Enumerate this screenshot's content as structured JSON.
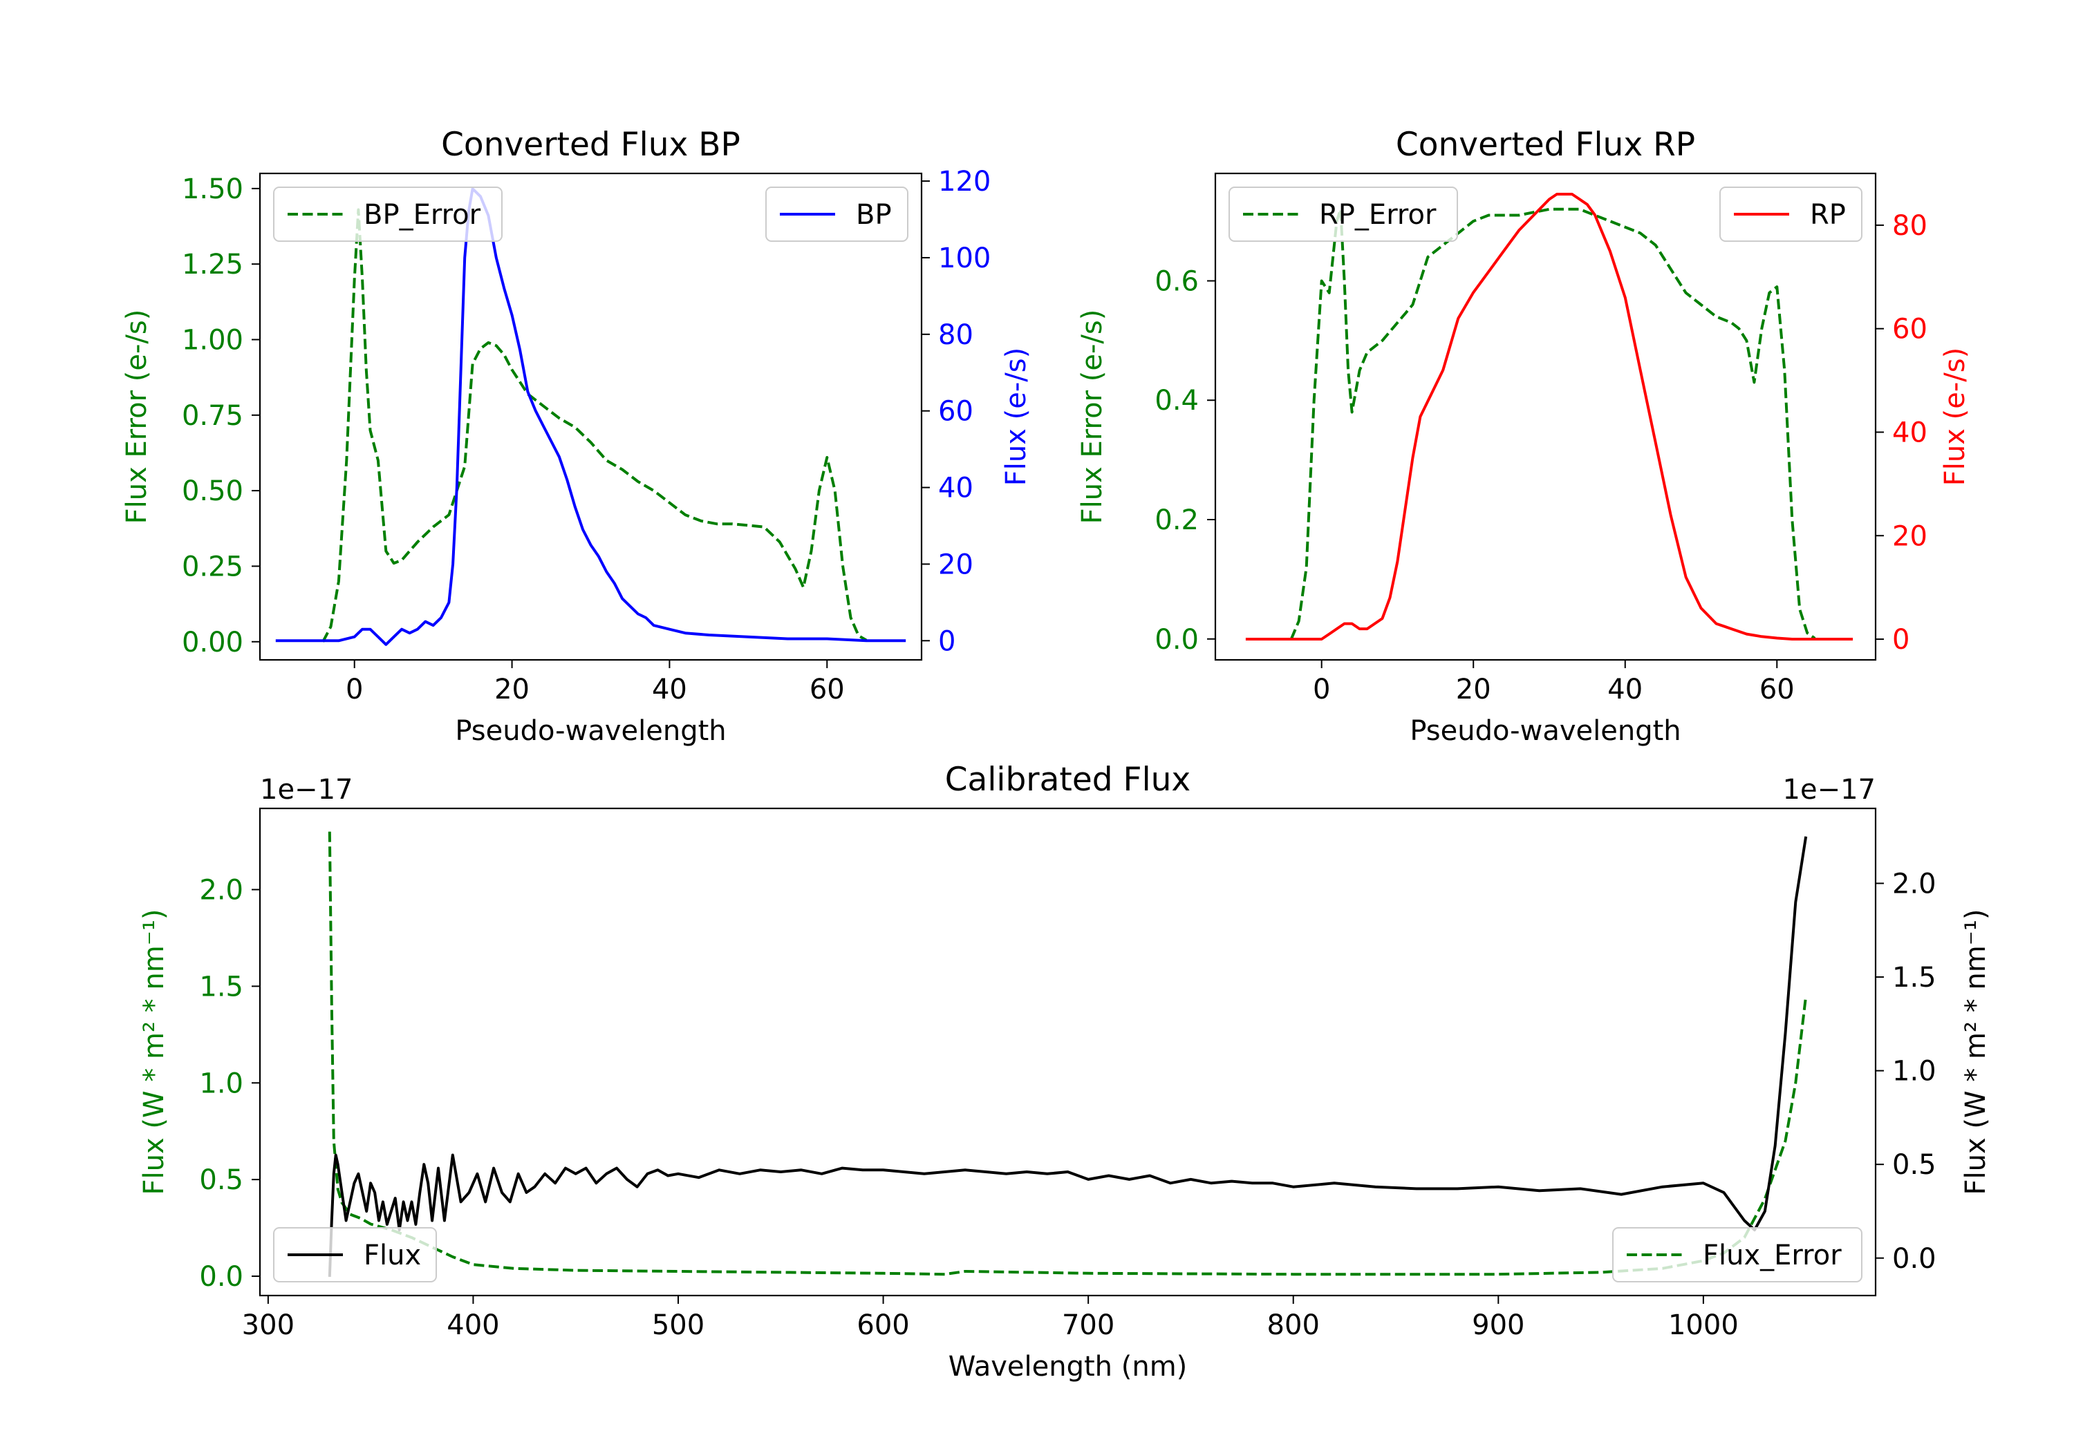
{
  "colors": {
    "error": "#007f00",
    "bp": "#0000ff",
    "rp": "#ff0000",
    "flux": "#000000",
    "axis": "#000000"
  },
  "chart_data": [
    {
      "id": "bp",
      "type": "line",
      "title": "Converted Flux BP",
      "xlabel": "Pseudo-wavelength",
      "ylabel_left": "Flux Error (e-/s)",
      "ylabel_right": "Flux (e-/s)",
      "xlim": [
        -12,
        72
      ],
      "ylim_left": [
        -0.06,
        1.55
      ],
      "ylim_right": [
        -5,
        122
      ],
      "xticks": [
        {
          "v": 0,
          "label": "0"
        },
        {
          "v": 20,
          "label": "20"
        },
        {
          "v": 40,
          "label": "40"
        },
        {
          "v": 60,
          "label": "60"
        }
      ],
      "yticks_left": [
        {
          "v": 0,
          "label": "0.00"
        },
        {
          "v": 0.25,
          "label": "0.25"
        },
        {
          "v": 0.5,
          "label": "0.50"
        },
        {
          "v": 0.75,
          "label": "0.75"
        },
        {
          "v": 1.0,
          "label": "1.00"
        },
        {
          "v": 1.25,
          "label": "1.25"
        },
        {
          "v": 1.5,
          "label": "1.50"
        }
      ],
      "yticks_right": [
        {
          "v": 0,
          "label": "0"
        },
        {
          "v": 20,
          "label": "20"
        },
        {
          "v": 40,
          "label": "40"
        },
        {
          "v": 60,
          "label": "60"
        },
        {
          "v": 80,
          "label": "80"
        },
        {
          "v": 100,
          "label": "100"
        },
        {
          "v": 120,
          "label": "120"
        }
      ],
      "series": [
        {
          "name": "BP_Error",
          "axis": "left",
          "style": "dashed",
          "color": "#007f00",
          "x": [
            -4,
            -3,
            -2,
            -1,
            0,
            0.5,
            1,
            1.5,
            2,
            3,
            4,
            5,
            6,
            7,
            8,
            10,
            12,
            14,
            15,
            16,
            17,
            18,
            19,
            20,
            22,
            24,
            26,
            28,
            30,
            32,
            34,
            36,
            38,
            40,
            42,
            44,
            46,
            48,
            50,
            52,
            54,
            56,
            57,
            58,
            59,
            60,
            61,
            62,
            63,
            64,
            65
          ],
          "y": [
            0,
            0.05,
            0.2,
            0.6,
            1.2,
            1.43,
            1.2,
            0.9,
            0.7,
            0.6,
            0.3,
            0.26,
            0.27,
            0.3,
            0.33,
            0.38,
            0.42,
            0.58,
            0.92,
            0.97,
            0.99,
            0.98,
            0.95,
            0.9,
            0.82,
            0.78,
            0.74,
            0.71,
            0.66,
            0.6,
            0.57,
            0.53,
            0.5,
            0.46,
            0.42,
            0.4,
            0.39,
            0.39,
            0.385,
            0.38,
            0.33,
            0.24,
            0.18,
            0.3,
            0.5,
            0.61,
            0.5,
            0.25,
            0.08,
            0.02,
            0.005
          ]
        },
        {
          "name": "BP",
          "axis": "right",
          "style": "solid",
          "color": "#0000ff",
          "x": [
            -10,
            -5,
            -2,
            0,
            1,
            2,
            3,
            4,
            5,
            6,
            7,
            8,
            9,
            10,
            11,
            12,
            12.5,
            13,
            13.5,
            14,
            14.5,
            15,
            15.5,
            16,
            17,
            18,
            19,
            20,
            21,
            22,
            23,
            24,
            25,
            26,
            27,
            28,
            29,
            30,
            31,
            32,
            33,
            34,
            35,
            36,
            37,
            38,
            40,
            42,
            45,
            50,
            55,
            60,
            65,
            70
          ],
          "y": [
            0,
            0,
            0,
            1,
            3,
            3,
            1,
            -1,
            1,
            3,
            2,
            3,
            5,
            4,
            6,
            10,
            20,
            40,
            70,
            100,
            112,
            118,
            117,
            116,
            111,
            100,
            92,
            85,
            76,
            65,
            60,
            56,
            52,
            48,
            42,
            35,
            29,
            25,
            22,
            18,
            15,
            11,
            9,
            7,
            6,
            4,
            3,
            2,
            1.5,
            1,
            0.5,
            0.5,
            0,
            0
          ]
        }
      ],
      "legends": [
        {
          "corner": "top-left",
          "label": "BP_Error",
          "style": "dashed",
          "color": "#007f00"
        },
        {
          "corner": "top-right",
          "label": "BP",
          "style": "solid",
          "color": "#0000ff"
        }
      ]
    },
    {
      "id": "rp",
      "type": "line",
      "title": "Converted Flux RP",
      "xlabel": "Pseudo-wavelength",
      "ylabel_left": "Flux Error (e-/s)",
      "ylabel_right": "Flux (e-/s)",
      "xlim": [
        -14,
        73
      ],
      "ylim_left": [
        -0.035,
        0.78
      ],
      "ylim_right": [
        -4,
        90
      ],
      "xticks": [
        {
          "v": 0,
          "label": "0"
        },
        {
          "v": 20,
          "label": "20"
        },
        {
          "v": 40,
          "label": "40"
        },
        {
          "v": 60,
          "label": "60"
        }
      ],
      "yticks_left": [
        {
          "v": 0,
          "label": "0.0"
        },
        {
          "v": 0.2,
          "label": "0.2"
        },
        {
          "v": 0.4,
          "label": "0.4"
        },
        {
          "v": 0.6,
          "label": "0.6"
        }
      ],
      "yticks_right": [
        {
          "v": 0,
          "label": "0"
        },
        {
          "v": 20,
          "label": "20"
        },
        {
          "v": 40,
          "label": "40"
        },
        {
          "v": 60,
          "label": "60"
        },
        {
          "v": 80,
          "label": "80"
        }
      ],
      "series": [
        {
          "name": "RP_Error",
          "axis": "left",
          "style": "dashed",
          "color": "#007f00",
          "x": [
            -4,
            -3,
            -2,
            -1,
            0,
            1,
            2,
            2.5,
            3,
            3.5,
            4,
            5,
            6,
            8,
            10,
            12,
            13,
            14,
            16,
            18,
            20,
            22,
            24,
            26,
            28,
            30,
            32,
            34,
            36,
            38,
            40,
            42,
            44,
            46,
            48,
            50,
            52,
            54,
            55,
            56,
            57,
            58,
            59,
            60,
            61,
            62,
            63,
            64,
            65
          ],
          "y": [
            0,
            0.03,
            0.12,
            0.4,
            0.6,
            0.58,
            0.7,
            0.72,
            0.6,
            0.45,
            0.38,
            0.45,
            0.48,
            0.5,
            0.53,
            0.56,
            0.6,
            0.64,
            0.66,
            0.68,
            0.7,
            0.71,
            0.71,
            0.71,
            0.715,
            0.72,
            0.72,
            0.72,
            0.71,
            0.7,
            0.69,
            0.68,
            0.66,
            0.62,
            0.58,
            0.56,
            0.54,
            0.53,
            0.52,
            0.5,
            0.43,
            0.52,
            0.58,
            0.59,
            0.45,
            0.2,
            0.05,
            0.01,
            0.001
          ]
        },
        {
          "name": "RP",
          "axis": "right",
          "style": "solid",
          "color": "#ff0000",
          "x": [
            -10,
            -5,
            0,
            1,
            2,
            3,
            4,
            5,
            6,
            7,
            8,
            9,
            10,
            11,
            12,
            13,
            14,
            16,
            18,
            20,
            22,
            24,
            26,
            28,
            30,
            31,
            32,
            33,
            34,
            35,
            36,
            38,
            40,
            42,
            44,
            46,
            48,
            50,
            52,
            53,
            54,
            56,
            58,
            60,
            62,
            65,
            70
          ],
          "y": [
            0,
            0,
            0,
            1,
            2,
            3,
            3,
            2,
            2,
            3,
            4,
            8,
            15,
            25,
            35,
            43,
            46,
            52,
            62,
            67,
            71,
            75,
            79,
            82,
            85,
            86,
            86,
            86,
            85,
            84,
            82,
            75,
            66,
            52,
            38,
            24,
            12,
            6,
            3,
            2.5,
            2,
            1,
            0.5,
            0.2,
            0,
            0,
            0
          ]
        }
      ],
      "legends": [
        {
          "corner": "top-left",
          "label": "RP_Error",
          "style": "dashed",
          "color": "#007f00"
        },
        {
          "corner": "top-right",
          "label": "RP",
          "style": "solid",
          "color": "#ff0000"
        }
      ]
    },
    {
      "id": "cal",
      "type": "line",
      "title": "Calibrated Flux",
      "xlabel": "Wavelength (nm)",
      "ylabel_left": "Flux (W * m² * nm⁻¹)",
      "ylabel_right": "Flux (W * m² * nm⁻¹)",
      "offset_left": "1e−17",
      "offset_right": "1e−17",
      "xlim": [
        296,
        1084
      ],
      "ylim_left": [
        -0.1,
        2.42
      ],
      "ylim_right": [
        -0.2,
        2.4
      ],
      "xticks": [
        {
          "v": 300,
          "label": "300"
        },
        {
          "v": 400,
          "label": "400"
        },
        {
          "v": 500,
          "label": "500"
        },
        {
          "v": 600,
          "label": "600"
        },
        {
          "v": 700,
          "label": "700"
        },
        {
          "v": 800,
          "label": "800"
        },
        {
          "v": 900,
          "label": "900"
        },
        {
          "v": 1000,
          "label": "1000"
        }
      ],
      "yticks_left": [
        {
          "v": 0,
          "label": "0.0"
        },
        {
          "v": 0.5,
          "label": "0.5"
        },
        {
          "v": 1.0,
          "label": "1.0"
        },
        {
          "v": 1.5,
          "label": "1.5"
        },
        {
          "v": 2.0,
          "label": "2.0"
        }
      ],
      "yticks_right": [
        {
          "v": 0,
          "label": "0.0"
        },
        {
          "v": 0.5,
          "label": "0.5"
        },
        {
          "v": 1.0,
          "label": "1.0"
        },
        {
          "v": 1.5,
          "label": "1.5"
        },
        {
          "v": 2.0,
          "label": "2.0"
        }
      ],
      "series": [
        {
          "name": "Flux_Error",
          "axis": "left",
          "style": "dashed",
          "color": "#007f00",
          "x": [
            330,
            331,
            332,
            334,
            336,
            340,
            345,
            350,
            360,
            370,
            380,
            390,
            400,
            420,
            450,
            500,
            550,
            600,
            630,
            640,
            700,
            800,
            900,
            950,
            980,
            1000,
            1010,
            1020,
            1030,
            1040,
            1045,
            1050
          ],
          "y": [
            2.3,
            1.4,
            0.7,
            0.45,
            0.38,
            0.32,
            0.3,
            0.27,
            0.24,
            0.2,
            0.15,
            0.1,
            0.06,
            0.04,
            0.03,
            0.025,
            0.02,
            0.015,
            0.01,
            0.025,
            0.015,
            0.01,
            0.01,
            0.02,
            0.04,
            0.08,
            0.12,
            0.2,
            0.4,
            0.7,
            1.0,
            1.45
          ]
        },
        {
          "name": "Flux",
          "axis": "right",
          "style": "solid",
          "color": "#000000",
          "x": [
            330,
            331,
            332,
            333,
            334,
            336,
            338,
            340,
            342,
            344,
            346,
            348,
            350,
            352,
            354,
            356,
            358,
            360,
            362,
            364,
            366,
            368,
            370,
            372,
            374,
            376,
            378,
            380,
            383,
            386,
            390,
            394,
            398,
            402,
            406,
            410,
            414,
            418,
            422,
            426,
            430,
            435,
            440,
            445,
            450,
            455,
            460,
            465,
            470,
            475,
            480,
            485,
            490,
            495,
            500,
            510,
            520,
            530,
            540,
            550,
            560,
            570,
            580,
            590,
            600,
            610,
            620,
            630,
            640,
            650,
            660,
            670,
            680,
            690,
            700,
            710,
            720,
            730,
            740,
            750,
            760,
            770,
            780,
            790,
            800,
            820,
            840,
            860,
            880,
            900,
            920,
            940,
            960,
            980,
            1000,
            1010,
            1020,
            1025,
            1030,
            1035,
            1040,
            1045,
            1050
          ],
          "y": [
            -0.1,
            0.2,
            0.45,
            0.55,
            0.5,
            0.35,
            0.2,
            0.3,
            0.4,
            0.45,
            0.35,
            0.25,
            0.4,
            0.35,
            0.2,
            0.3,
            0.18,
            0.25,
            0.32,
            0.15,
            0.3,
            0.2,
            0.3,
            0.18,
            0.35,
            0.5,
            0.4,
            0.2,
            0.48,
            0.2,
            0.55,
            0.3,
            0.35,
            0.45,
            0.3,
            0.48,
            0.35,
            0.3,
            0.45,
            0.35,
            0.38,
            0.45,
            0.4,
            0.48,
            0.45,
            0.48,
            0.4,
            0.45,
            0.48,
            0.42,
            0.38,
            0.45,
            0.47,
            0.44,
            0.45,
            0.43,
            0.47,
            0.45,
            0.47,
            0.46,
            0.47,
            0.45,
            0.48,
            0.47,
            0.47,
            0.46,
            0.45,
            0.46,
            0.47,
            0.46,
            0.45,
            0.46,
            0.45,
            0.46,
            0.42,
            0.44,
            0.42,
            0.44,
            0.4,
            0.42,
            0.4,
            0.41,
            0.4,
            0.4,
            0.38,
            0.4,
            0.38,
            0.37,
            0.37,
            0.38,
            0.36,
            0.37,
            0.34,
            0.38,
            0.4,
            0.35,
            0.2,
            0.15,
            0.25,
            0.6,
            1.2,
            1.9,
            2.25
          ]
        }
      ],
      "legends": [
        {
          "corner": "bottom-left",
          "label": "Flux",
          "style": "solid",
          "color": "#000000"
        },
        {
          "corner": "bottom-right",
          "label": "Flux_Error",
          "style": "dashed",
          "color": "#007f00"
        }
      ]
    }
  ]
}
